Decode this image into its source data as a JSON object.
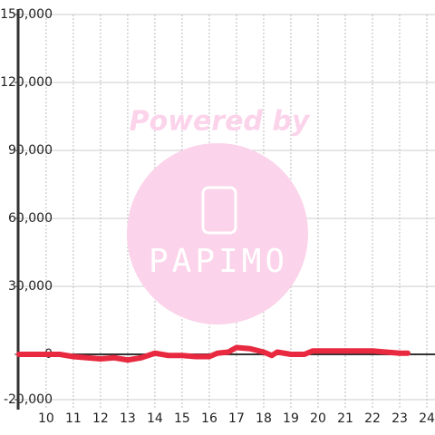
{
  "chart_data": {
    "type": "line",
    "x": [
      9,
      10.5,
      11,
      12,
      12.5,
      13,
      13.5,
      14,
      14.5,
      15,
      15.5,
      16,
      16.3,
      16.7,
      17,
      17.5,
      18,
      18.3,
      18.5,
      19,
      19.5,
      19.8,
      20,
      21,
      22,
      22.5,
      23,
      23.3
    ],
    "series": [
      {
        "color": "#e8293f",
        "values": [
          0,
          0,
          -1000,
          -2000,
          -1500,
          -2500,
          -1500,
          500,
          -500,
          -500,
          -1000,
          -1000,
          500,
          1000,
          3000,
          2500,
          1000,
          -500,
          1000,
          0,
          0,
          1500,
          1500,
          1500,
          1500,
          1000,
          500,
          500
        ]
      }
    ],
    "xlim": [
      8.97,
      24.3
    ],
    "xticks": [
      10,
      11,
      12,
      13,
      14,
      15,
      16,
      17,
      18,
      19,
      20,
      21,
      22,
      23,
      24
    ],
    "ylim": [
      -20000,
      150000
    ],
    "yticks": [
      {
        "value": -20000,
        "label": "-20,000"
      },
      0,
      {
        "value": 30000,
        "label": "30,000"
      },
      {
        "value": 60000,
        "label": "60,000"
      },
      {
        "value": 90000,
        "label": "90,000"
      },
      {
        "value": 120000,
        "label": "120,000"
      },
      {
        "value": 150000,
        "label": "150,000"
      }
    ],
    "grid": true,
    "watermark": {
      "text": "Powered by",
      "logo": "PAPIMO"
    }
  }
}
